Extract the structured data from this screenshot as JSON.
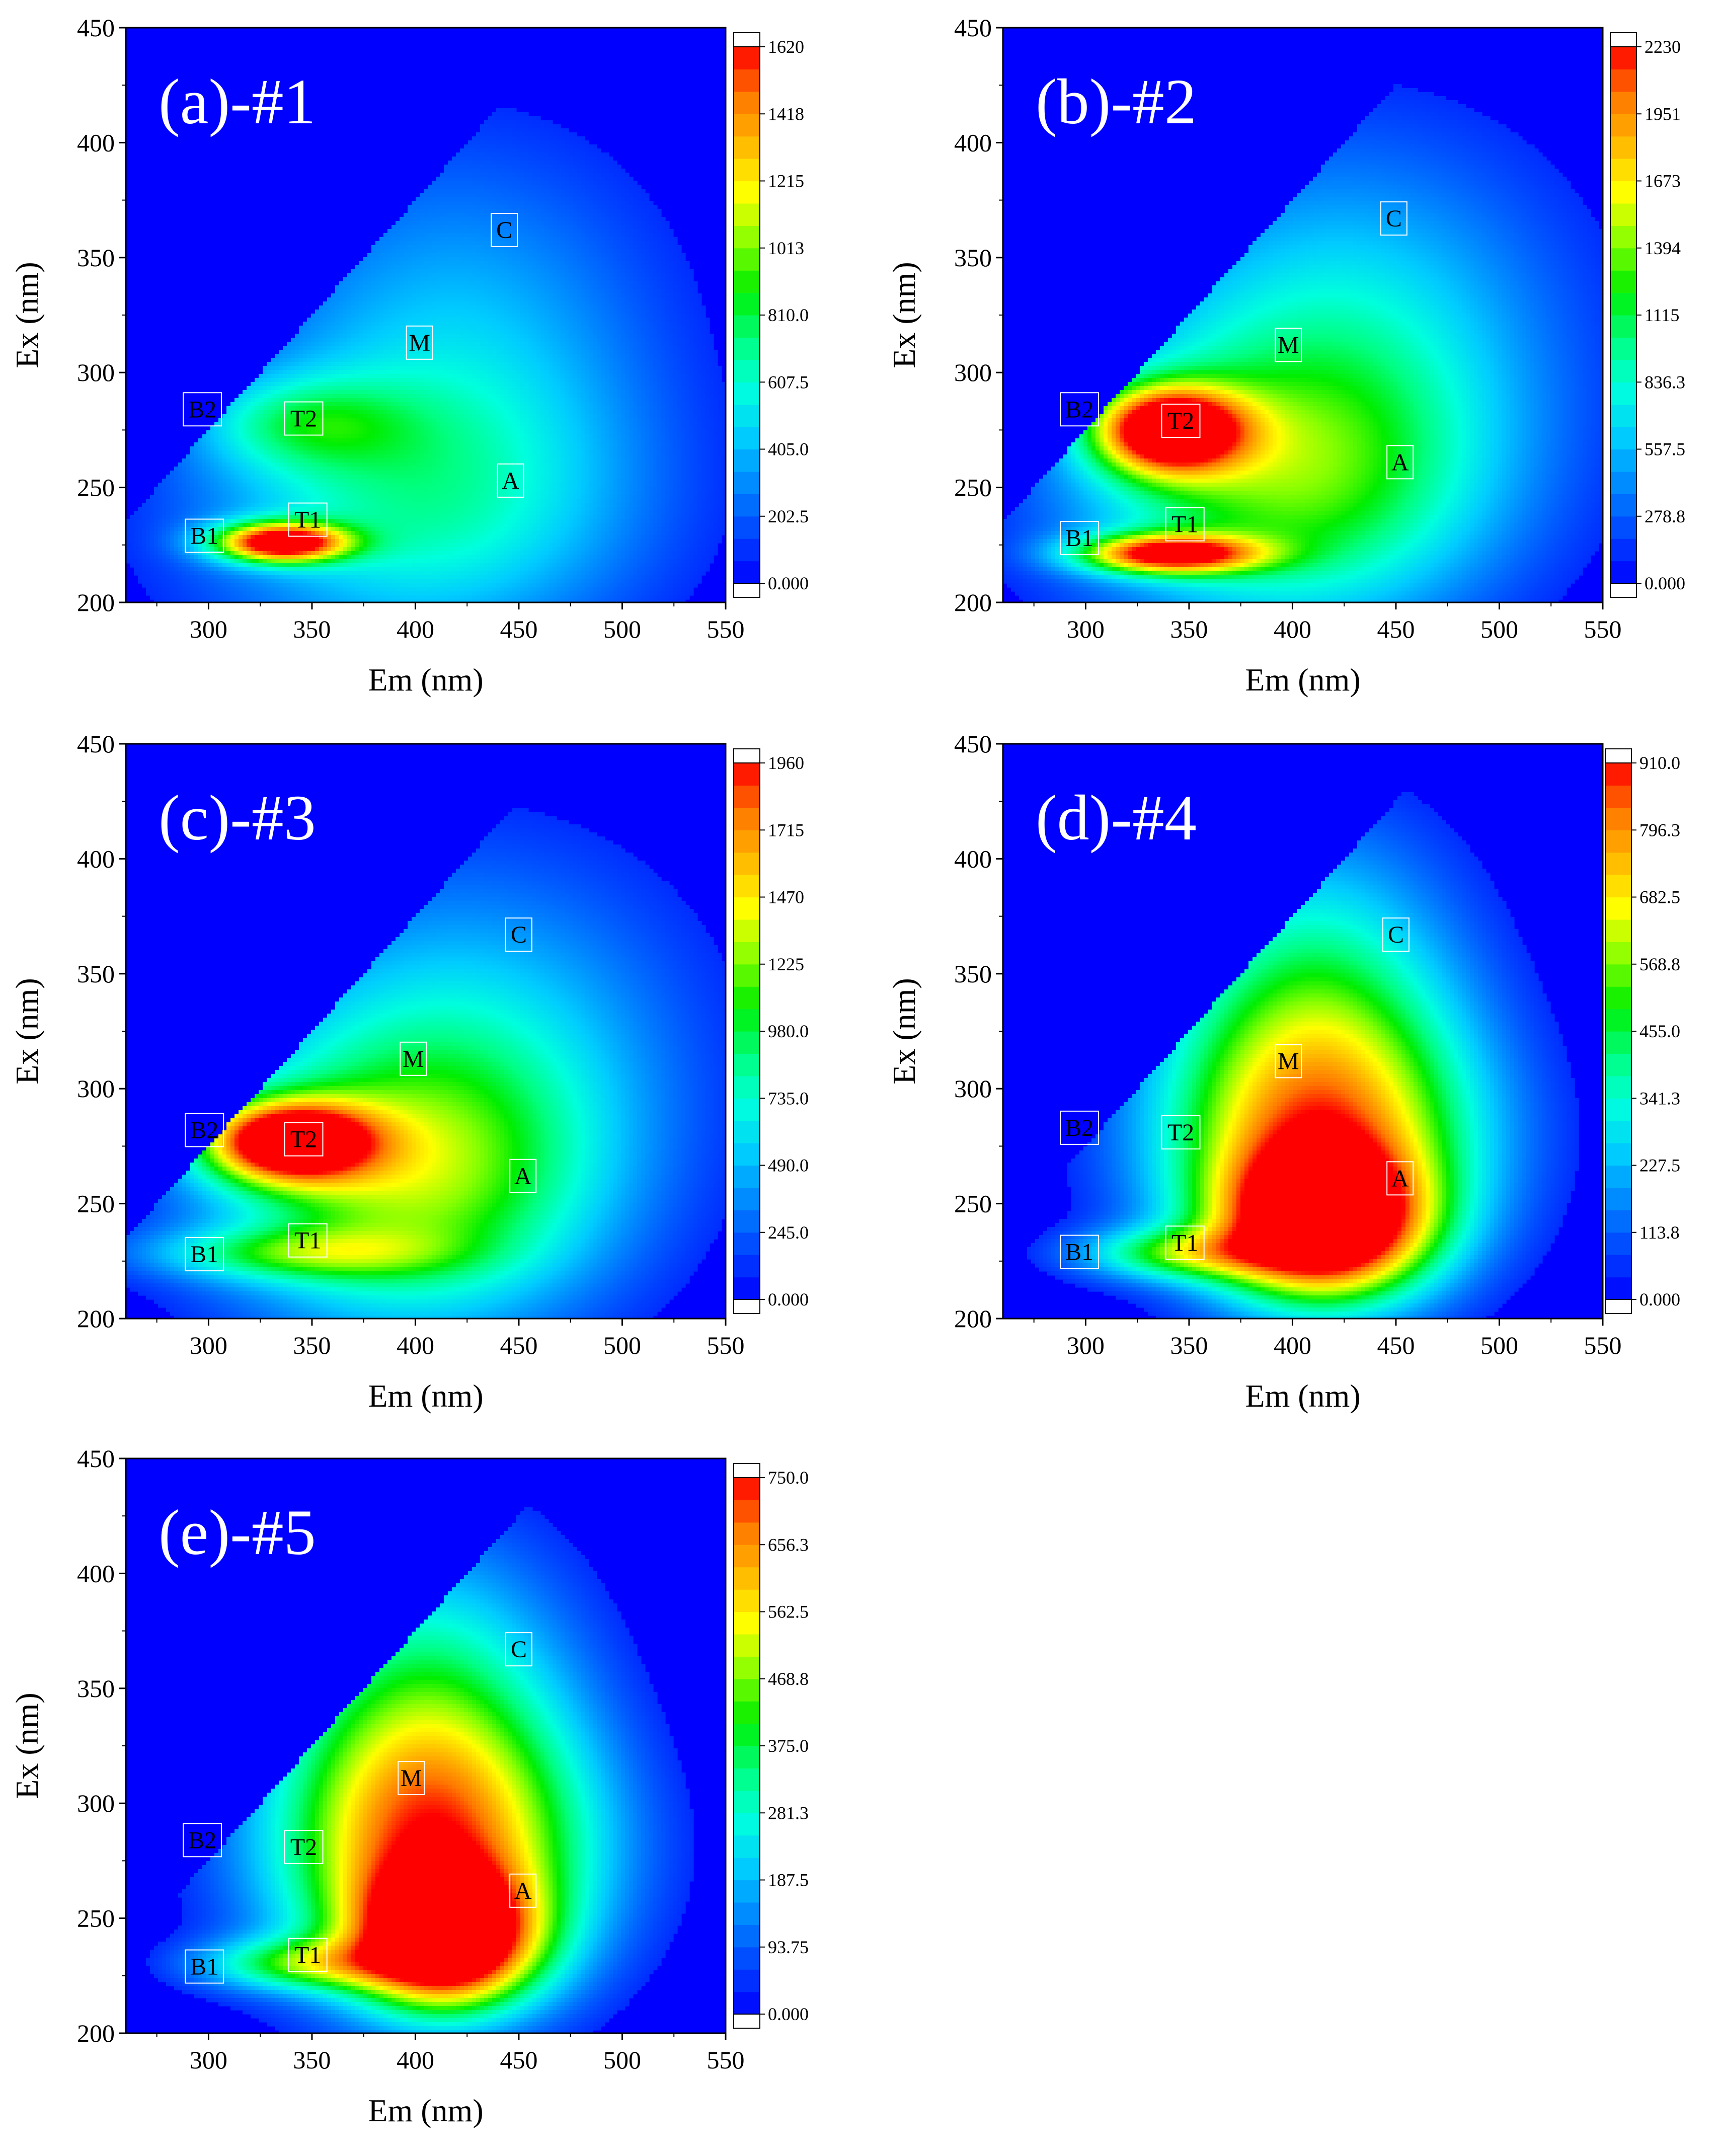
{
  "colors": {
    "colormap": [
      "#0000ff",
      "#0044ff",
      "#0088ff",
      "#00ccff",
      "#00ffdd",
      "#00ff80",
      "#00ee00",
      "#88ff00",
      "#ffff00",
      "#ffbb00",
      "#ff7700",
      "#ff0000"
    ]
  },
  "chart_data": [
    {
      "type": "heatmap",
      "title": "(a)-#1",
      "xlabel": "Em (nm)",
      "ylabel": "Ex (nm)",
      "xlim": [
        260,
        550
      ],
      "ylim": [
        200,
        450
      ],
      "xticks": [
        "300",
        "350",
        "400",
        "450",
        "500",
        "550"
      ],
      "yticks": [
        "200",
        "250",
        "300",
        "350",
        "400",
        "450"
      ],
      "colorbar": {
        "min": 0,
        "max": 1620,
        "ticks": [
          "0.000",
          "202.5",
          "405.0",
          "607.5",
          "810.0",
          "1013",
          "1215",
          "1418",
          "1620"
        ]
      },
      "peaks": [
        {
          "ex": 226,
          "em": 335,
          "value": 1620,
          "sx": 22,
          "sy": 6
        },
        {
          "ex": 240,
          "em": 400,
          "value": 560,
          "sx": 75,
          "sy": 45
        },
        {
          "ex": 278,
          "em": 345,
          "value": 420,
          "sx": 35,
          "sy": 14
        },
        {
          "ex": 320,
          "em": 420,
          "value": 360,
          "sx": 70,
          "sy": 60
        }
      ],
      "regions": [
        {
          "label": "B2",
          "em": 297,
          "ex": 284
        },
        {
          "label": "T2",
          "em": 346,
          "ex": 280
        },
        {
          "label": "M",
          "em": 402,
          "ex": 313
        },
        {
          "label": "C",
          "em": 443,
          "ex": 362
        },
        {
          "label": "A",
          "em": 446,
          "ex": 253
        },
        {
          "label": "T1",
          "em": 348,
          "ex": 236
        },
        {
          "label": "B1",
          "em": 298,
          "ex": 229
        }
      ]
    },
    {
      "type": "heatmap",
      "title": "(b)-#2",
      "xlabel": "Em (nm)",
      "ylabel": "Ex (nm)",
      "xlim": [
        260,
        550
      ],
      "ylim": [
        200,
        450
      ],
      "xticks": [
        "300",
        "350",
        "400",
        "450",
        "500",
        "550"
      ],
      "yticks": [
        "200",
        "250",
        "300",
        "350",
        "400",
        "450"
      ],
      "colorbar": {
        "min": 0,
        "max": 2230,
        "ticks": [
          "0.000",
          "278.8",
          "557.5",
          "836.3",
          "1115",
          "1394",
          "1673",
          "1951",
          "2230"
        ]
      },
      "peaks": [
        {
          "ex": 275,
          "em": 340,
          "value": 2230,
          "sx": 25,
          "sy": 13
        },
        {
          "ex": 221,
          "em": 340,
          "value": 1950,
          "sx": 30,
          "sy": 6
        },
        {
          "ex": 250,
          "em": 395,
          "value": 1100,
          "sx": 70,
          "sy": 45
        },
        {
          "ex": 320,
          "em": 425,
          "value": 650,
          "sx": 75,
          "sy": 60
        }
      ],
      "regions": [
        {
          "label": "B2",
          "em": 297,
          "ex": 284
        },
        {
          "label": "T2",
          "em": 346,
          "ex": 279
        },
        {
          "label": "M",
          "em": 398,
          "ex": 312
        },
        {
          "label": "C",
          "em": 449,
          "ex": 367
        },
        {
          "label": "A",
          "em": 452,
          "ex": 261
        },
        {
          "label": "T1",
          "em": 348,
          "ex": 234
        },
        {
          "label": "B1",
          "em": 297,
          "ex": 228
        }
      ]
    },
    {
      "type": "heatmap",
      "title": "(c)-#3",
      "xlabel": "Em (nm)",
      "ylabel": "Ex (nm)",
      "xlim": [
        260,
        550
      ],
      "ylim": [
        200,
        450
      ],
      "xticks": [
        "300",
        "350",
        "400",
        "450",
        "500",
        "550"
      ],
      "yticks": [
        "200",
        "250",
        "300",
        "350",
        "400",
        "450"
      ],
      "colorbar": {
        "min": 0,
        "max": 1960,
        "ticks": [
          "0.000",
          "245.0",
          "490.0",
          "735.0",
          "980.0",
          "1225",
          "1470",
          "1715",
          "1960"
        ]
      },
      "peaks": [
        {
          "ex": 277,
          "em": 338,
          "value": 1960,
          "sx": 28,
          "sy": 12
        },
        {
          "ex": 258,
          "em": 395,
          "value": 1050,
          "sx": 65,
          "sy": 45
        },
        {
          "ex": 228,
          "em": 340,
          "value": 620,
          "sx": 50,
          "sy": 8
        },
        {
          "ex": 320,
          "em": 425,
          "value": 520,
          "sx": 75,
          "sy": 60
        }
      ],
      "regions": [
        {
          "label": "B2",
          "em": 298,
          "ex": 282
        },
        {
          "label": "T2",
          "em": 346,
          "ex": 278
        },
        {
          "label": "M",
          "em": 399,
          "ex": 313
        },
        {
          "label": "C",
          "em": 450,
          "ex": 367
        },
        {
          "label": "A",
          "em": 452,
          "ex": 262
        },
        {
          "label": "T1",
          "em": 348,
          "ex": 234
        },
        {
          "label": "B1",
          "em": 298,
          "ex": 228
        }
      ]
    },
    {
      "type": "heatmap",
      "title": "(d)-#4",
      "xlabel": "Em (nm)",
      "ylabel": "Ex (nm)",
      "xlim": [
        260,
        550
      ],
      "ylim": [
        200,
        450
      ],
      "xticks": [
        "300",
        "350",
        "400",
        "450",
        "500",
        "550"
      ],
      "yticks": [
        "200",
        "250",
        "300",
        "350",
        "400",
        "450"
      ],
      "colorbar": {
        "min": 0,
        "max": 910,
        "ticks": [
          "0.000",
          "113.8",
          "227.5",
          "341.3",
          "455.0",
          "568.8",
          "682.5",
          "796.3",
          "910.0"
        ]
      },
      "peaks": [
        {
          "ex": 240,
          "em": 415,
          "value": 910,
          "sx": 35,
          "sy": 22
        },
        {
          "ex": 275,
          "em": 415,
          "value": 560,
          "sx": 55,
          "sy": 40
        },
        {
          "ex": 330,
          "em": 410,
          "value": 420,
          "sx": 50,
          "sy": 55
        },
        {
          "ex": 228,
          "em": 345,
          "value": 380,
          "sx": 35,
          "sy": 8
        }
      ],
      "regions": [
        {
          "label": "B2",
          "em": 297,
          "ex": 283
        },
        {
          "label": "T2",
          "em": 346,
          "ex": 281
        },
        {
          "label": "M",
          "em": 398,
          "ex": 312
        },
        {
          "label": "C",
          "em": 450,
          "ex": 367
        },
        {
          "label": "A",
          "em": 452,
          "ex": 261
        },
        {
          "label": "T1",
          "em": 348,
          "ex": 233
        },
        {
          "label": "B1",
          "em": 297,
          "ex": 229
        }
      ]
    },
    {
      "type": "heatmap",
      "title": "(e)-#5",
      "xlabel": "Em (nm)",
      "ylabel": "Ex (nm)",
      "xlim": [
        260,
        550
      ],
      "ylim": [
        200,
        450
      ],
      "xticks": [
        "300",
        "350",
        "400",
        "450",
        "500",
        "550"
      ],
      "yticks": [
        "200",
        "250",
        "300",
        "350",
        "400",
        "450"
      ],
      "colorbar": {
        "min": 0,
        "max": 750,
        "ticks": [
          "0.000",
          "93.75",
          "187.5",
          "281.3",
          "375.0",
          "468.8",
          "562.5",
          "656.3",
          "750.0"
        ]
      },
      "peaks": [
        {
          "ex": 240,
          "em": 415,
          "value": 750,
          "sx": 30,
          "sy": 20
        },
        {
          "ex": 275,
          "em": 410,
          "value": 480,
          "sx": 55,
          "sy": 40
        },
        {
          "ex": 330,
          "em": 405,
          "value": 380,
          "sx": 50,
          "sy": 55
        },
        {
          "ex": 230,
          "em": 345,
          "value": 320,
          "sx": 35,
          "sy": 8
        }
      ],
      "regions": [
        {
          "label": "B2",
          "em": 297,
          "ex": 284
        },
        {
          "label": "T2",
          "em": 346,
          "ex": 281
        },
        {
          "label": "M",
          "em": 398,
          "ex": 311
        },
        {
          "label": "C",
          "em": 450,
          "ex": 367
        },
        {
          "label": "A",
          "em": 452,
          "ex": 262
        },
        {
          "label": "T1",
          "em": 348,
          "ex": 234
        },
        {
          "label": "B1",
          "em": 298,
          "ex": 229
        }
      ]
    }
  ]
}
